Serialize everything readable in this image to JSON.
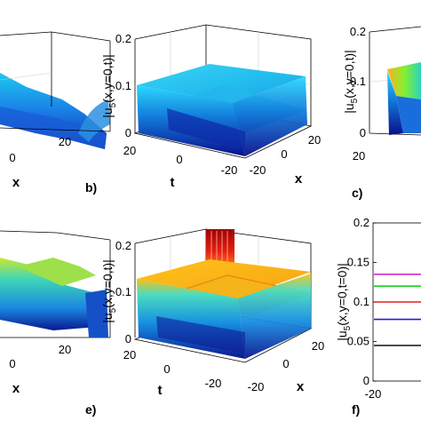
{
  "figure": {
    "panels": [
      {
        "label": "",
        "ztick_labels": [],
        "ttick_labels": [],
        "xtick_labels": [
          "0",
          "20"
        ],
        "zlabel": "",
        "tlabel": "",
        "xlabel": "x"
      },
      {
        "label": "b)",
        "ztick_labels": [
          "0",
          "0.1",
          "0.2"
        ],
        "ttick_labels": [
          "20",
          "0",
          "-20"
        ],
        "xtick_labels": [
          "20",
          "0",
          "-20"
        ],
        "zlabel": "|u5(x,y=0,t)|",
        "tlabel": "t",
        "xlabel": "x"
      },
      {
        "label": "c)",
        "ztick_labels": [
          "0",
          "0.1",
          "0.2"
        ],
        "ttick_labels": [
          "20"
        ],
        "xtick_labels": [],
        "zlabel": "|u5(x,y=0,t)|",
        "tlabel": "",
        "xlabel": ""
      },
      {
        "label": "",
        "ztick_labels": [],
        "ttick_labels": [],
        "xtick_labels": [
          "0",
          "20"
        ],
        "zlabel": "",
        "tlabel": "",
        "xlabel": "x"
      },
      {
        "label": "e)",
        "ztick_labels": [
          "0",
          "0.1",
          "0.2"
        ],
        "ttick_labels": [
          "20",
          "0",
          "-20"
        ],
        "xtick_labels": [
          "20",
          "0",
          "-20"
        ],
        "zlabel": "|u5(x,y=0,t)|",
        "tlabel": "t",
        "xlabel": "x"
      },
      {
        "label": "f)",
        "ztick_labels": [
          "0",
          "0.05",
          "0.1",
          "0.15",
          "0.2"
        ],
        "ttick_labels": [],
        "xtick_labels": [
          "-20"
        ],
        "zlabel": "|u5(x,y=0,t=0)|",
        "tlabel": "",
        "xlabel": ""
      }
    ]
  },
  "chart_data": [
    {
      "type": "surface",
      "panel": "b)",
      "xlim": [
        -20,
        20
      ],
      "tlim": [
        -20,
        20
      ],
      "zlim": [
        0,
        0.2
      ],
      "plateau_value": 0.1,
      "colormap": "jet"
    },
    {
      "type": "surface",
      "panel": "e)",
      "xlim": [
        -20,
        20
      ],
      "tlim": [
        -20,
        20
      ],
      "zlim": [
        0,
        0.2
      ],
      "plateau_value": 0.13,
      "peak_value": 0.2,
      "colormap": "jet"
    },
    {
      "type": "line",
      "panel": "f)",
      "ylim": [
        0,
        0.2
      ],
      "yticks": [
        0,
        0.05,
        0.1,
        0.15,
        0.2
      ],
      "xtick_labels": [
        "-20"
      ],
      "series": [
        {
          "values": [
            0.135
          ],
          "color": "#d627d6"
        },
        {
          "values": [
            0.12
          ],
          "color": "#22cc22"
        },
        {
          "values": [
            0.1
          ],
          "color": "#e02020"
        },
        {
          "values": [
            0.078
          ],
          "color": "#1f1fd6"
        },
        {
          "values": [
            0.045
          ],
          "color": "#222222"
        }
      ]
    }
  ]
}
